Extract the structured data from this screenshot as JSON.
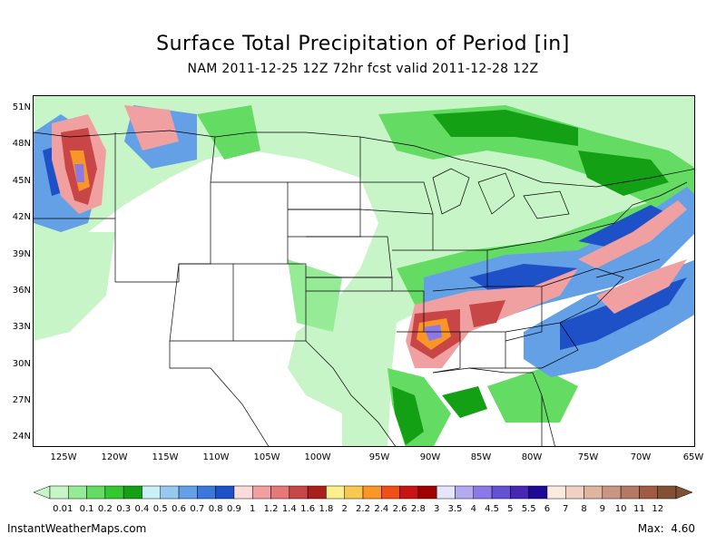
{
  "title": "Surface Total Precipitation of Period [in]",
  "subtitle": "NAM 2011-12-25 12Z 72hr fcst valid 2011-12-28 12Z",
  "lat_labels": [
    "51N",
    "48N",
    "45N",
    "42N",
    "39N",
    "36N",
    "33N",
    "30N",
    "27N",
    "24N"
  ],
  "lon_labels": [
    "125W",
    "120W",
    "115W",
    "110W",
    "105W",
    "100W",
    "95W",
    "90W",
    "85W",
    "80W",
    "75W",
    "70W",
    "65W"
  ],
  "colorbar": {
    "labels": [
      "0.01",
      "0.1",
      "0.2",
      "0.3",
      "0.4",
      "0.5",
      "0.6",
      "0.7",
      "0.8",
      "0.9",
      "1",
      "1.2",
      "1.4",
      "1.6",
      "1.8",
      "2",
      "2.2",
      "2.4",
      "2.6",
      "2.8",
      "3",
      "3.5",
      "4",
      "4.5",
      "5",
      "5.5",
      "6",
      "7",
      "8",
      "9",
      "10",
      "11",
      "12"
    ],
    "colors": [
      "#c8f5c8",
      "#96eb96",
      "#64dc64",
      "#32c832",
      "#14a014",
      "#c8f0f5",
      "#96c8f0",
      "#64a0e6",
      "#3c78dc",
      "#1e50c8",
      "#fadcdc",
      "#f0a0a0",
      "#e67878",
      "#c84646",
      "#aa1e1e",
      "#faf08c",
      "#fac850",
      "#fa9628",
      "#f05014",
      "#c81414",
      "#a00000",
      "#e6e6fa",
      "#b4aaf0",
      "#8c78e6",
      "#6450d2",
      "#4628b4",
      "#1e0a96",
      "#faebe1",
      "#f0d2c3",
      "#e1b4a0",
      "#c89682",
      "#b47864",
      "#a05a46",
      "#825032"
    ]
  },
  "footer": {
    "source": "InstantWeatherMaps.com",
    "max_label": "Max:",
    "max_value": "4.60"
  }
}
